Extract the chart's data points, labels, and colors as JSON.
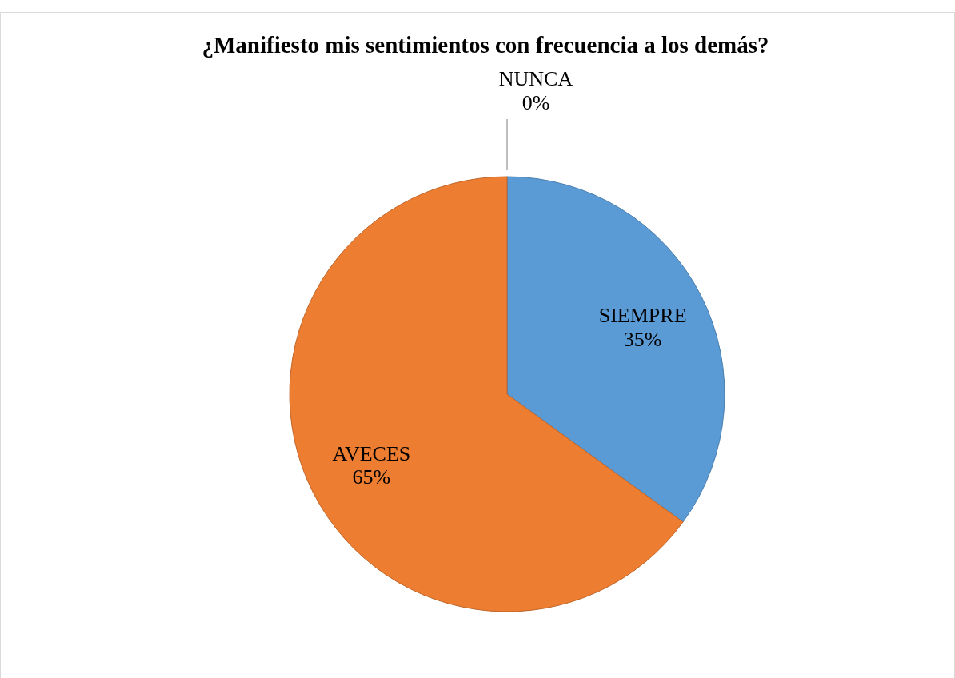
{
  "chart_data": {
    "type": "pie",
    "title": "¿Manifiesto mis sentimientos con frecuencia a los demás?",
    "categories": [
      "SIEMPRE",
      "AVECES",
      "NUNCA"
    ],
    "values": [
      35,
      65,
      0
    ],
    "colors": [
      "#5b9bd5",
      "#ed7d31",
      "#a5a5a5"
    ],
    "value_labels": [
      "35%",
      "65%",
      "0%"
    ],
    "legend": false
  }
}
